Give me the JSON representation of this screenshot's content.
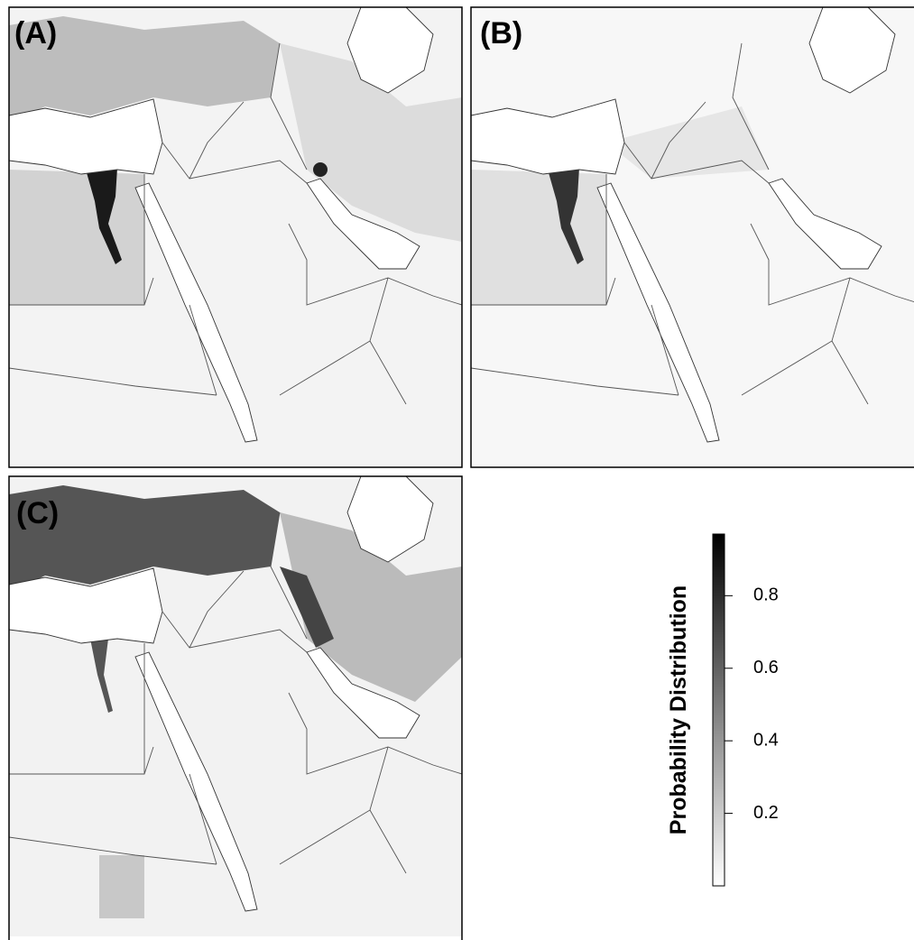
{
  "panels": {
    "a": "(A)",
    "b": "(B)",
    "c": "(C)"
  },
  "colorbar": {
    "title": "Probability Distribution",
    "lim": [
      0,
      0.97
    ],
    "ticks": [
      0.2,
      0.4,
      0.6,
      0.8
    ]
  }
}
